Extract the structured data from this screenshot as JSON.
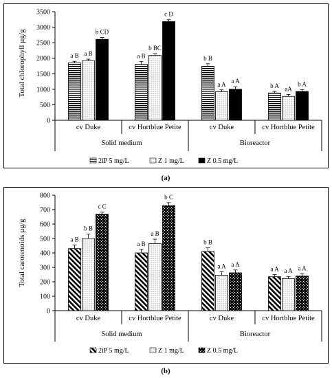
{
  "panels": [
    {
      "panel_label": "(a)",
      "legend_labels": [
        "2iP 5 mg/L",
        "Z 1 mg/L",
        "Z 0.5 mg/L"
      ]
    },
    {
      "panel_label": "(b)",
      "legend_labels": [
        "2iP 5 mg/L",
        "Z 1 mg/L",
        "Z 0.5 mg/L"
      ]
    }
  ],
  "chart_data": [
    {
      "type": "bar",
      "ylabel": "Total chlorophyll µg/g",
      "ylim": [
        0,
        3500
      ],
      "yticks": [
        0,
        500,
        1000,
        1500,
        2000,
        2500,
        3000,
        3500
      ],
      "grid": false,
      "legend_position": "bottom",
      "categories": [
        "cv Duke",
        "cv Hortblue Petite",
        "cv Duke",
        "cv Hortblue Petite"
      ],
      "groups": [
        {
          "label": "Solid medium",
          "categories": [
            0,
            1
          ]
        },
        {
          "label": "Bioreactor",
          "categories": [
            2,
            3
          ]
        }
      ],
      "series": [
        {
          "name": "2iP 5 mg/L",
          "pattern": "horizontal-lines",
          "values": [
            1850,
            1800,
            1740,
            880
          ],
          "errors": [
            50,
            90,
            80,
            50
          ],
          "labels": [
            "a B",
            "a B",
            "b B",
            "b A"
          ]
        },
        {
          "name": "Z 1 mg/L",
          "pattern": "dots",
          "values": [
            1920,
            2090,
            920,
            770
          ],
          "errors": [
            50,
            60,
            60,
            60
          ],
          "labels": [
            "a B",
            "b BC",
            "a A",
            "aA"
          ]
        },
        {
          "name": "Z 0.5 mg/L",
          "pattern": "solid",
          "values": [
            2610,
            3180,
            1000,
            930
          ],
          "errors": [
            60,
            60,
            80,
            60
          ],
          "labels": [
            "b CD",
            "c D",
            "a A",
            "b A"
          ]
        }
      ]
    },
    {
      "type": "bar",
      "ylabel": "Total carotenoids µg/g",
      "ylim": [
        0,
        800
      ],
      "yticks": [
        0,
        100,
        200,
        300,
        400,
        500,
        600,
        700,
        800
      ],
      "grid": false,
      "legend_position": "bottom",
      "categories": [
        "cv Duke",
        "cv Hortblue Petite",
        "cv Duke",
        "cv Hortblue Petite"
      ],
      "groups": [
        {
          "label": "Solid medium",
          "categories": [
            0,
            1
          ]
        },
        {
          "label": "Bioreactor",
          "categories": [
            2,
            3
          ]
        }
      ],
      "series": [
        {
          "name": "2iP 5 mg/L",
          "pattern": "diagonal-lines",
          "values": [
            430,
            400,
            410,
            235
          ],
          "errors": [
            25,
            25,
            25,
            15
          ],
          "labels": [
            "a B",
            "a B",
            "b B",
            "a A"
          ]
        },
        {
          "name": "Z 1 mg/L",
          "pattern": "dots",
          "values": [
            500,
            465,
            245,
            222
          ],
          "errors": [
            30,
            30,
            25,
            15
          ],
          "labels": [
            "b B",
            "a B",
            "a A",
            "a A"
          ]
        },
        {
          "name": "Z 0.5 mg/L",
          "pattern": "cross-hatch",
          "values": [
            668,
            728,
            262,
            240
          ],
          "errors": [
            15,
            20,
            20,
            15
          ],
          "labels": [
            "c C",
            "b C",
            "a A",
            "a A"
          ]
        }
      ]
    }
  ]
}
